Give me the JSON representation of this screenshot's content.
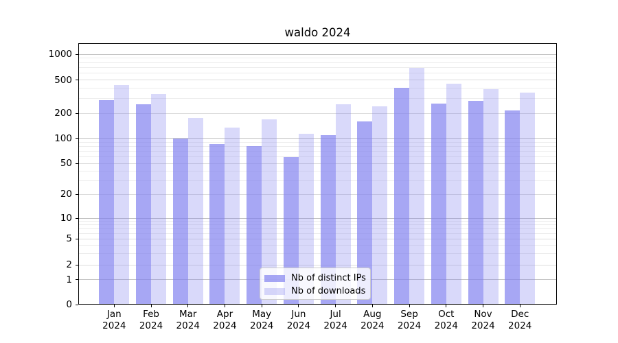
{
  "figure": {
    "title": "waldo 2024"
  },
  "chart_data": {
    "type": "bar",
    "title": "waldo 2024",
    "categories": [
      "Jan 2024",
      "Feb 2024",
      "Mar 2024",
      "Apr 2024",
      "May 2024",
      "Jun 2024",
      "Jul 2024",
      "Aug 2024",
      "Sep 2024",
      "Oct 2024",
      "Nov 2024",
      "Dec 2024"
    ],
    "series": [
      {
        "name": "Nb of distinct IPs",
        "color": "rgba(130,130,240,0.7)",
        "values": [
          285,
          255,
          100,
          86,
          80,
          60,
          110,
          160,
          400,
          262,
          280,
          215
        ]
      },
      {
        "name": "Nb of downloads",
        "color": "rgba(130,130,240,0.3)",
        "values": [
          435,
          340,
          175,
          135,
          170,
          113,
          257,
          242,
          690,
          450,
          390,
          355
        ]
      }
    ],
    "xlabel": "",
    "ylabel": "",
    "yscale": "symlog",
    "ylim": [
      0,
      1360
    ],
    "yticks": [
      0,
      1,
      2,
      5,
      10,
      20,
      50,
      100,
      200,
      500,
      1000
    ],
    "grid": true,
    "legend_position": "lower center",
    "bar_width_fraction": 0.4
  }
}
